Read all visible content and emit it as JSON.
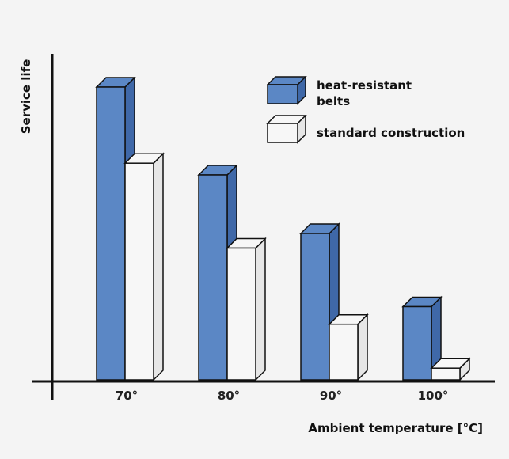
{
  "chart_data": {
    "type": "bar",
    "title": "",
    "xlabel": "Ambient temperature [°C]",
    "ylabel": "Service life",
    "categories": [
      "70°",
      "80°",
      "90°",
      "100°"
    ],
    "series": [
      {
        "name": "heat-resistant belts",
        "values": [
          100,
          70,
          50,
          25
        ]
      },
      {
        "name": "standard construction",
        "values": [
          74,
          45,
          19,
          4
        ]
      }
    ],
    "ylim": [
      0,
      105
    ],
    "grid": false,
    "legend": "top-right",
    "colors": {
      "heat_resistant": "#5b87c5",
      "heat_resistant_side": "#3f68a8",
      "standard": "#f7f7f7",
      "standard_side": "#e6e6e6",
      "outline": "#111111",
      "background": "#f4f4f4"
    }
  },
  "legend": {
    "heat_resistant_line1": "heat-resistant",
    "heat_resistant_line2": "belts",
    "standard": "standard construction"
  }
}
